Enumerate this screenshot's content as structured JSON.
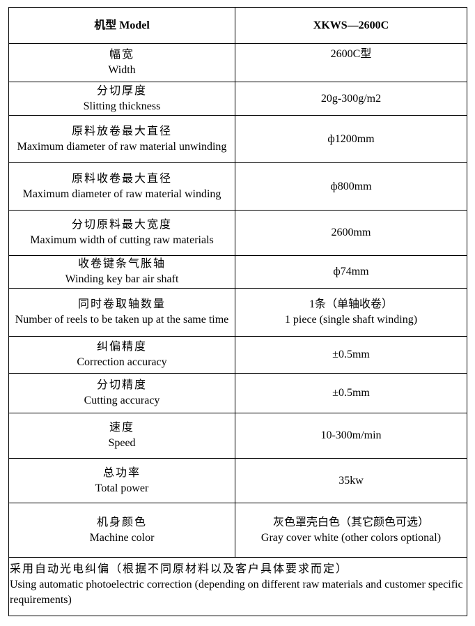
{
  "header": {
    "label": "机型 Model",
    "value": "XKWS—2600C"
  },
  "rows": [
    {
      "zh": "幅宽",
      "en": "Width",
      "value": "2600C型",
      "value2": ""
    },
    {
      "zh": "分切厚度",
      "en": "Slitting thickness",
      "value": "20g-300g/m2",
      "value2": ""
    },
    {
      "zh": "原料放卷最大直径",
      "en": "Maximum diameter of raw material unwinding",
      "value": "ф1200mm",
      "value2": ""
    },
    {
      "zh": "原料收卷最大直径",
      "en": "Maximum diameter of raw material winding",
      "value": "ф800mm",
      "value2": ""
    },
    {
      "zh": "分切原料最大宽度",
      "en": "Maximum width of cutting raw materials",
      "value": "2600mm",
      "value2": ""
    },
    {
      "zh": "收卷键条气胀轴",
      "en": "Winding key bar air shaft",
      "value": "ф74mm",
      "value2": ""
    },
    {
      "zh": "同时卷取轴数量",
      "en": "Number of reels to be taken up at the same time",
      "value": "1条（单轴收卷）",
      "value2": "1 piece (single shaft winding)"
    },
    {
      "zh": "纠偏精度",
      "en": "Correction accuracy",
      "value": "±0.5mm",
      "value2": ""
    },
    {
      "zh": "分切精度",
      "en": "Cutting accuracy",
      "value": "±0.5mm",
      "value2": ""
    },
    {
      "zh": "速度",
      "en": "Speed",
      "value": "10-300m/min",
      "value2": ""
    },
    {
      "zh": "总功率",
      "en": "Total power",
      "value": "35kw",
      "value2": ""
    },
    {
      "zh": "机身颜色",
      "en": "Machine color",
      "value": "灰色罩壳白色（其它颜色可选）",
      "value2": "Gray cover white (other colors optional)"
    }
  ],
  "note": {
    "zh": "采用自动光电纠偏（根据不同原材料以及客户具体要求而定）",
    "en": "Using automatic photoelectric correction (depending on different raw materials and customer specific requirements)"
  }
}
